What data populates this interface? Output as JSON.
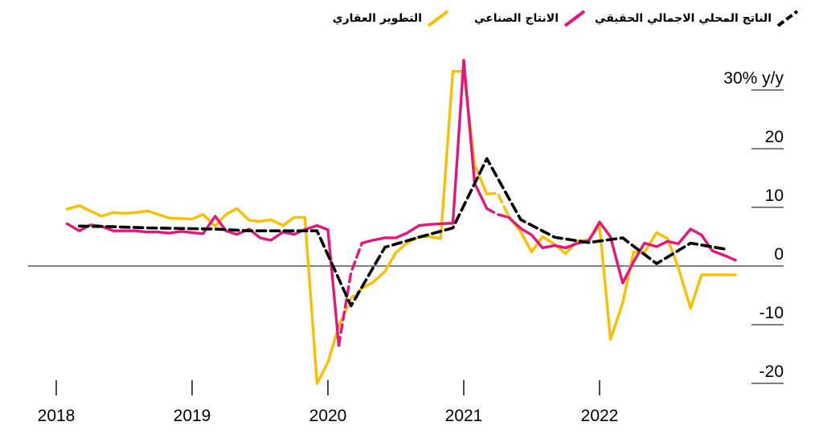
{
  "legend": [
    {
      "label": "الناتج المحلي الاجمالي الحقيقي",
      "color": "#000000",
      "dash": true
    },
    {
      "label": "الانتاج الصناعي",
      "color": "#e6157e",
      "dash": false
    },
    {
      "label": "التطوير العقاري",
      "color": "#fcbf00",
      "dash": false
    }
  ],
  "chart_data": {
    "type": "line",
    "ylabel": "30% y/y",
    "ylim": [
      -20,
      30
    ],
    "yticks": [
      {
        "value": 30,
        "label": "30% y/y"
      },
      {
        "value": 20,
        "label": "20"
      },
      {
        "value": 10,
        "label": "10"
      },
      {
        "value": 0,
        "label": "0"
      },
      {
        "value": -10,
        "label": "-10"
      },
      {
        "value": -20,
        "label": "-20"
      }
    ],
    "xticks": [
      {
        "value": 2018,
        "label": "2018"
      },
      {
        "value": 2019,
        "label": "2019"
      },
      {
        "value": 2020,
        "label": "2020"
      },
      {
        "value": 2021,
        "label": "2021"
      },
      {
        "value": 2022,
        "label": "2022"
      }
    ],
    "xlim": [
      2017.7,
      2023.2
    ],
    "zero_line": true,
    "series": [
      {
        "name": "الناتج المحلي الاجمالي الحقيقي",
        "color": "#000000",
        "style": "dashed",
        "x": [
          2018.17,
          2018.42,
          2018.67,
          2018.92,
          2019.17,
          2019.42,
          2019.67,
          2019.92,
          2020.17,
          2020.42,
          2020.67,
          2020.92,
          2021.17,
          2021.42,
          2021.67,
          2021.92,
          2022.17,
          2022.42,
          2022.67,
          2022.92
        ],
        "values": [
          6.8,
          6.7,
          6.5,
          6.4,
          6.3,
          6.0,
          6.0,
          6.0,
          -6.8,
          3.2,
          4.9,
          6.5,
          18.3,
          7.9,
          4.9,
          4.0,
          4.8,
          0.4,
          3.9,
          2.9
        ]
      },
      {
        "name": "الانتاج الصناعي",
        "color": "#e6157e",
        "style": "solid",
        "dashed_segments": [
          [
            24,
            26
          ],
          [
            37,
            39
          ]
        ],
        "x": [
          2018.08,
          2018.17,
          2018.25,
          2018.33,
          2018.42,
          2018.5,
          2018.58,
          2018.67,
          2018.75,
          2018.83,
          2018.92,
          2019.0,
          2019.08,
          2019.17,
          2019.25,
          2019.33,
          2019.42,
          2019.5,
          2019.58,
          2019.67,
          2019.75,
          2019.83,
          2019.92,
          2020.0,
          2020.08,
          2020.17,
          2020.25,
          2020.33,
          2020.42,
          2020.5,
          2020.58,
          2020.67,
          2020.75,
          2020.83,
          2020.92,
          2021.0,
          2021.08,
          2021.17,
          2021.25,
          2021.33,
          2021.42,
          2021.5,
          2021.58,
          2021.67,
          2021.75,
          2021.83,
          2021.92,
          2022.0,
          2022.08,
          2022.17,
          2022.25,
          2022.33,
          2022.42,
          2022.5,
          2022.58,
          2022.67,
          2022.75,
          2022.83,
          2022.92,
          2023.0
        ],
        "values": [
          7.2,
          6.0,
          7.0,
          6.8,
          6.0,
          6.0,
          6.0,
          5.8,
          5.8,
          5.6,
          5.9,
          5.7,
          5.5,
          8.5,
          6.0,
          5.4,
          6.3,
          4.8,
          4.4,
          5.8,
          5.4,
          6.2,
          6.9,
          6.2,
          -13.5,
          -1.1,
          3.9,
          4.4,
          4.8,
          4.8,
          5.6,
          6.9,
          7.1,
          7.2,
          7.3,
          35.1,
          14.1,
          9.8,
          8.8,
          8.3,
          6.4,
          5.3,
          3.1,
          3.5,
          3.1,
          3.8,
          4.3,
          7.5,
          5.0,
          -2.9,
          0.7,
          3.9,
          3.3,
          4.2,
          3.8,
          6.3,
          5.3,
          2.6,
          1.8,
          1.0
        ]
      },
      {
        "name": "التطوير العقاري",
        "color": "#fcbf00",
        "style": "solid",
        "dashed_segments": [
          [
            24,
            26
          ],
          [
            37,
            39
          ]
        ],
        "x": [
          2018.08,
          2018.17,
          2018.25,
          2018.33,
          2018.42,
          2018.5,
          2018.58,
          2018.67,
          2018.75,
          2018.83,
          2018.92,
          2019.0,
          2019.08,
          2019.17,
          2019.25,
          2019.33,
          2019.42,
          2019.5,
          2019.58,
          2019.67,
          2019.75,
          2019.83,
          2019.92,
          2020.0,
          2020.08,
          2020.17,
          2020.25,
          2020.33,
          2020.42,
          2020.5,
          2020.58,
          2020.67,
          2020.75,
          2020.83,
          2020.92,
          2021.0,
          2021.08,
          2021.17,
          2021.25,
          2021.33,
          2021.42,
          2021.5,
          2021.58,
          2021.67,
          2021.75,
          2021.83,
          2021.92,
          2022.0,
          2022.08,
          2022.17,
          2022.25,
          2022.33,
          2022.42,
          2022.5,
          2022.58,
          2022.67,
          2022.75,
          2022.83,
          2022.92,
          2023.0
        ],
        "values": [
          9.7,
          10.3,
          9.4,
          8.5,
          9.1,
          9.0,
          9.1,
          9.4,
          8.8,
          8.2,
          8.1,
          8.0,
          8.8,
          6.8,
          8.8,
          9.8,
          7.8,
          7.6,
          7.9,
          6.9,
          8.3,
          8.3,
          -20.0,
          -16.4,
          -10.2,
          -5.5,
          -3.8,
          -2.8,
          -0.9,
          2.3,
          3.9,
          5.0,
          5.0,
          4.7,
          33.2,
          33.2,
          17.2,
          12.3,
          12.4,
          8.5,
          5.8,
          2.4,
          5.0,
          3.7,
          2.1,
          4.2,
          4.5,
          6.8,
          -12.5,
          -6.3,
          2.4,
          2.3,
          5.7,
          4.7,
          -0.3,
          -7.2,
          -1.5,
          -1.5,
          -1.5,
          -1.5
        ]
      }
    ]
  }
}
